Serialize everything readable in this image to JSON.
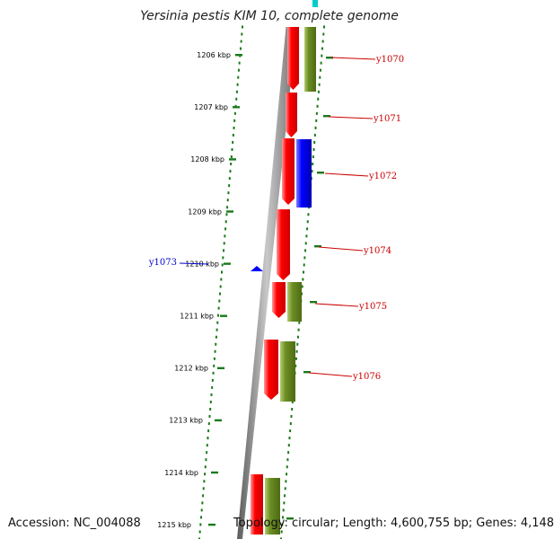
{
  "title": "Yersinia pestis KIM 10, complete genome",
  "footer": {
    "accession": "Accession: NC_004088",
    "summary": "Topology: circular; Length: 4,600,755 bp; Genes: 4,148"
  },
  "map": {
    "ruler_labels": [
      "1206 kbp",
      "1207 kbp",
      "1208 kbp",
      "1209 kbp",
      "1210 kbp",
      "1211 kbp",
      "1212 kbp",
      "1213 kbp",
      "1214 kbp",
      "1215 kbp"
    ],
    "features": [
      {
        "label": "y1070",
        "color": "#cc0000",
        "highlight": false
      },
      {
        "label": "y1071",
        "color": "#cc0000",
        "highlight": false
      },
      {
        "label": "y1072",
        "color": "#cc0000",
        "highlight": false
      },
      {
        "label": "y1073",
        "color": "#0000cc",
        "highlight": true
      },
      {
        "label": "y1074",
        "color": "#cc0000",
        "highlight": false
      },
      {
        "label": "y1075",
        "color": "#cc0000",
        "highlight": false
      },
      {
        "label": "y1076",
        "color": "#cc0000",
        "highlight": false
      }
    ],
    "colors": {
      "cds": "#ff0000",
      "gene": "#6b8e23",
      "selected": "#0000ff",
      "other": "#00cccc",
      "ruler": "#1a7a1a",
      "backbone": "#8c8c8c"
    }
  }
}
